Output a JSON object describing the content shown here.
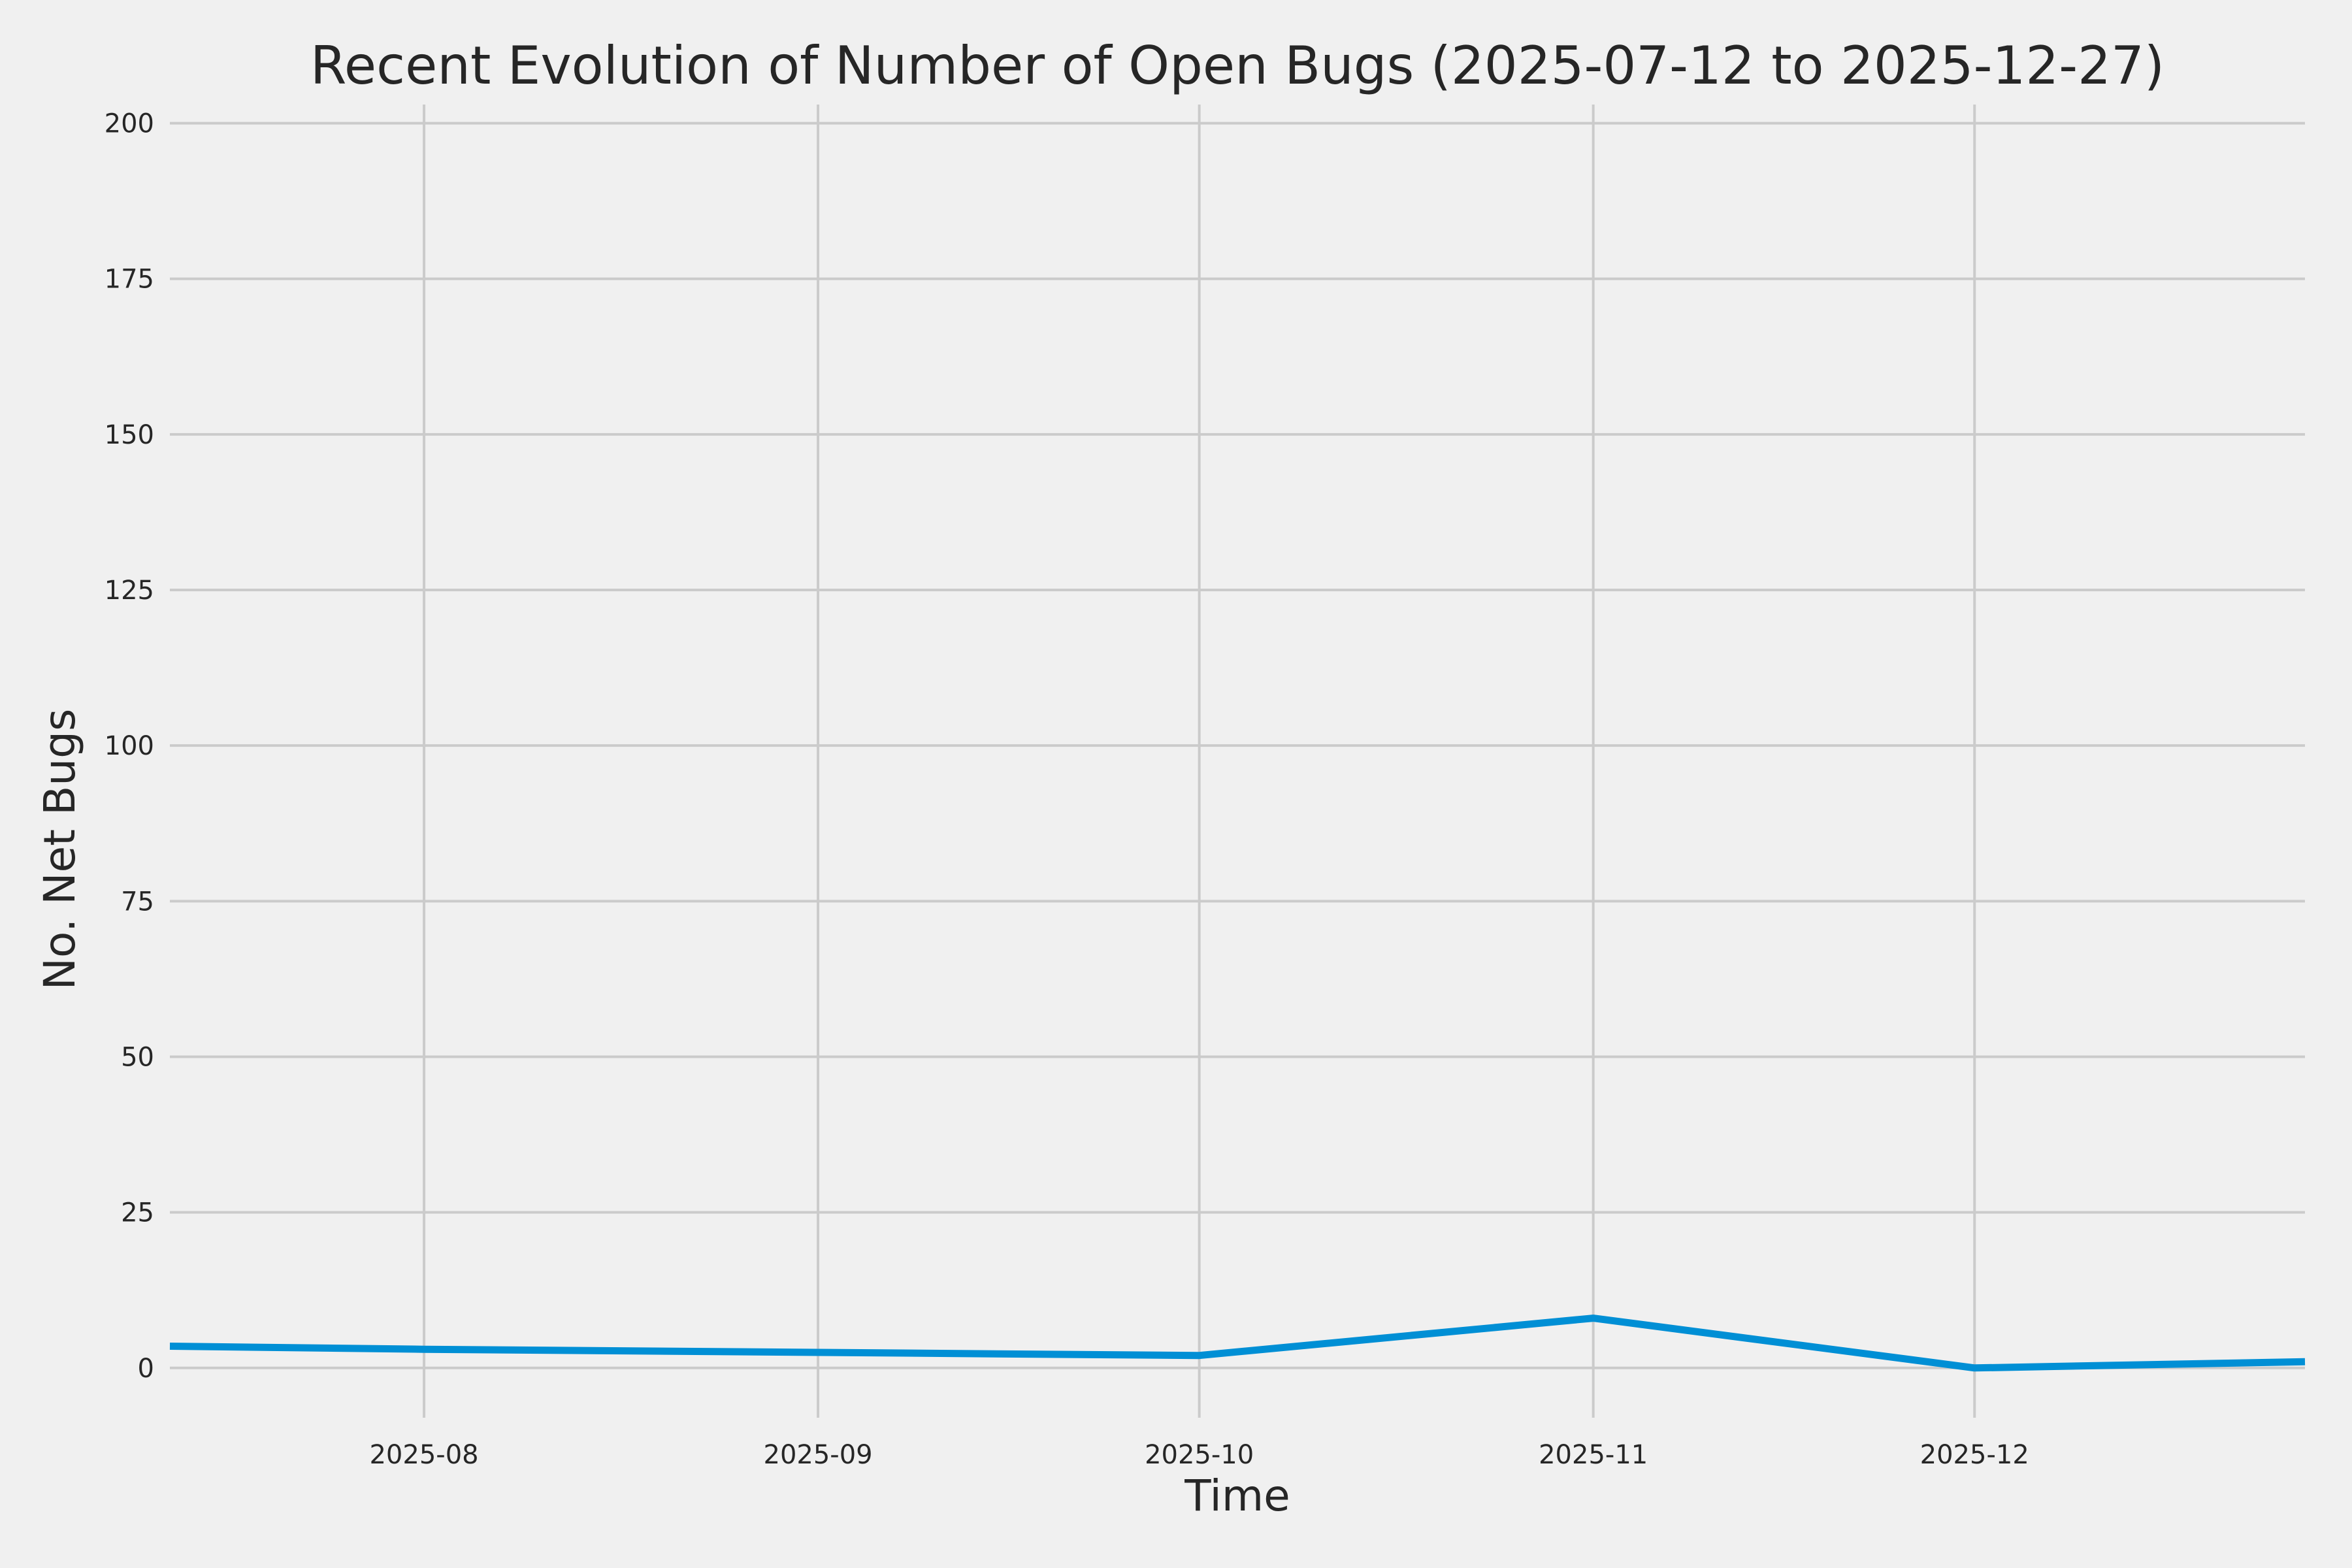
{
  "chart_data": {
    "type": "line",
    "title": "Recent Evolution of Number of Open Bugs (2025-07-12 to 2025-12-27)",
    "xlabel": "Time",
    "ylabel": "No. Net Bugs",
    "x_range": [
      "2025-07-12",
      "2025-12-27"
    ],
    "ylim": [
      -8,
      203
    ],
    "y_ticks": [
      0,
      25,
      50,
      75,
      100,
      125,
      150,
      175,
      200
    ],
    "x_ticks": [
      {
        "date": "2025-08-01",
        "label": "2025-08"
      },
      {
        "date": "2025-09-01",
        "label": "2025-09"
      },
      {
        "date": "2025-10-01",
        "label": "2025-10"
      },
      {
        "date": "2025-11-01",
        "label": "2025-11"
      },
      {
        "date": "2025-12-01",
        "label": "2025-12"
      }
    ],
    "grid": true,
    "series": [
      {
        "color": "#008fd5",
        "x": [
          "2025-07-12",
          "2025-08-01",
          "2025-09-01",
          "2025-10-01",
          "2025-11-01",
          "2025-12-01",
          "2025-12-27"
        ],
        "y": [
          3.5,
          3,
          2.5,
          2,
          8,
          0,
          1
        ]
      }
    ]
  }
}
